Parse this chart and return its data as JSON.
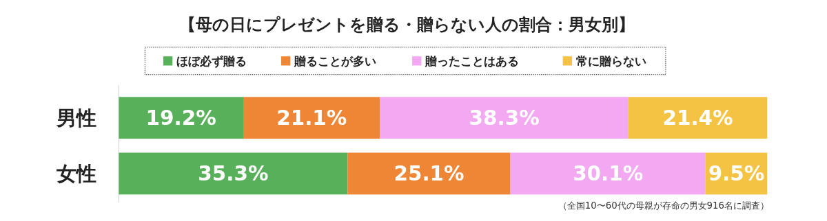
{
  "chart_data": {
    "type": "bar",
    "orientation": "horizontal",
    "stacked": true,
    "title": "【母の日にプレゼントを贈る・贈らない人の割合：男女別】",
    "categories": [
      "男性",
      "女性"
    ],
    "series": [
      {
        "name": "ほぼ必ず贈る",
        "color": "#58b05a",
        "values": [
          19.2,
          35.3
        ],
        "value_labels": [
          "19.2%",
          "35.3%"
        ]
      },
      {
        "name": "贈ることが多い",
        "color": "#ee8636",
        "values": [
          21.1,
          25.1
        ],
        "value_labels": [
          "21.1%",
          "25.1%"
        ]
      },
      {
        "name": "贈ったことはある",
        "color": "#f2a9f2",
        "values": [
          38.3,
          30.1
        ],
        "value_labels": [
          "38.3%",
          "30.1%"
        ]
      },
      {
        "name": "常に贈らない",
        "color": "#f5c344",
        "values": [
          21.4,
          9.5
        ],
        "value_labels": [
          "21.4%",
          "9.5%"
        ]
      }
    ],
    "legend": "top",
    "annotations": [
      "（全国10〜60代の母親が存命の男女916名に調査）"
    ]
  }
}
